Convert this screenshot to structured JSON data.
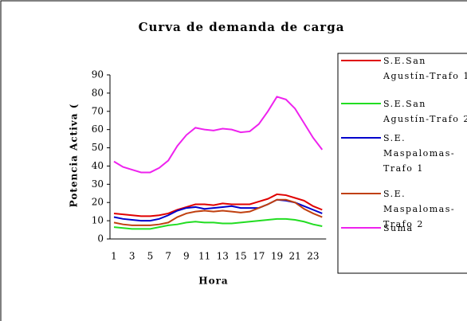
{
  "chart_data": {
    "type": "line",
    "title": "Curva de demanda de carga",
    "x_label": "Hora",
    "y_label": "Potencia Activa (",
    "categories": [
      1,
      null,
      3,
      null,
      5,
      null,
      7,
      null,
      9,
      null,
      11,
      null,
      13,
      null,
      15,
      null,
      17,
      null,
      19,
      null,
      21,
      null,
      23,
      null
    ],
    "series": [
      {
        "name": "S.E.San Agustín-Trafo 1",
        "color": "#e00000",
        "values": [
          14,
          13.5,
          13,
          12.5,
          12.5,
          13,
          14,
          16,
          17.5,
          19,
          19,
          18.5,
          19.5,
          19,
          19,
          19,
          20.5,
          22,
          24.5,
          24,
          22.5,
          21,
          18,
          16
        ]
      },
      {
        "name": "S.E.San Agustín-Trafo 2",
        "color": "#22dd22",
        "values": [
          6.5,
          6,
          5.5,
          5.5,
          5.5,
          6.5,
          7.5,
          8,
          9,
          9.5,
          9,
          9,
          8.5,
          8.5,
          9,
          9.5,
          10,
          10.5,
          11,
          11,
          10.5,
          9.5,
          8,
          7
        ]
      },
      {
        "name": "S.E. Maspalomas-Trafo 1",
        "color": "#0000cc",
        "values": [
          12,
          11,
          10.5,
          10,
          10,
          11,
          13,
          15.5,
          17,
          17.5,
          16.5,
          17,
          17.5,
          18,
          17,
          17,
          17,
          19,
          21.5,
          21,
          20,
          18,
          16,
          14
        ]
      },
      {
        "name": "S.E. Maspalomas-Trafo 2",
        "color": "#c04010",
        "values": [
          9,
          8,
          7.5,
          7.5,
          7.5,
          8,
          9,
          12,
          14,
          15,
          15.5,
          15,
          15.5,
          15,
          14.5,
          15,
          17,
          19,
          21.5,
          21.5,
          20,
          16.5,
          14,
          12
        ]
      },
      {
        "name": "Suma",
        "color": "#ee22ee",
        "values": [
          42.5,
          39.5,
          38,
          36.5,
          36.5,
          39,
          43,
          51,
          57,
          61,
          60,
          59.5,
          60.5,
          60,
          58.5,
          59,
          63,
          70,
          78,
          76.5,
          71.5,
          63.5,
          55.5,
          49
        ]
      }
    ],
    "ylim": [
      0,
      90
    ],
    "yticks": [
      0,
      10,
      20,
      30,
      40,
      50,
      60,
      70,
      80,
      90
    ]
  }
}
